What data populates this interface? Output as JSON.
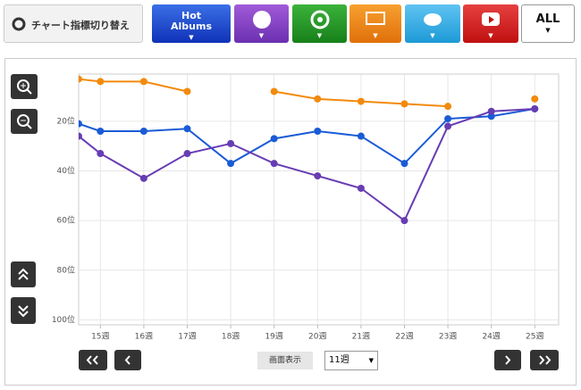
{
  "toolbar": {
    "switch_label": "チャート指標切り替え",
    "hot_tab": [
      "Hot",
      "Albums"
    ],
    "all_tab": "ALL"
  },
  "chart_data": {
    "type": "line",
    "x": [
      14.5,
      15,
      16,
      17,
      18,
      19,
      20,
      21,
      22,
      23,
      24,
      25
    ],
    "xlim": [
      14.5,
      25.55
    ],
    "xticks": [
      {
        "value": 15,
        "label": "15週"
      },
      {
        "value": 16,
        "label": "16週"
      },
      {
        "value": 17,
        "label": "17週"
      },
      {
        "value": 18,
        "label": "18週"
      },
      {
        "value": 19,
        "label": "19週"
      },
      {
        "value": 20,
        "label": "20週"
      },
      {
        "value": 21,
        "label": "21週"
      },
      {
        "value": 22,
        "label": "22週"
      },
      {
        "value": 23,
        "label": "23週"
      },
      {
        "value": 24,
        "label": "24週"
      },
      {
        "value": 25,
        "label": "25週"
      }
    ],
    "ylim": [
      102,
      1
    ],
    "yticks": [
      {
        "value": 20,
        "label": "20位"
      },
      {
        "value": 40,
        "label": "40位"
      },
      {
        "value": 60,
        "label": "60位"
      },
      {
        "value": 80,
        "label": "80位"
      },
      {
        "value": 100,
        "label": "100位"
      }
    ],
    "grid": true,
    "series": [
      {
        "color": "#f28a0c",
        "values": [
          3,
          4,
          4,
          8,
          null,
          8,
          11,
          12,
          13,
          14,
          null,
          11
        ]
      },
      {
        "color": "#1a5bd6",
        "values": [
          21,
          24,
          24,
          23,
          37,
          27,
          24,
          26,
          37,
          19,
          18,
          15
        ]
      },
      {
        "color": "#673db3",
        "values": [
          26,
          33,
          43,
          33,
          29,
          37,
          42,
          47,
          60,
          22,
          16,
          15
        ]
      }
    ]
  },
  "controls": {
    "display_label": "画面表示",
    "weeks_value": "11週"
  }
}
